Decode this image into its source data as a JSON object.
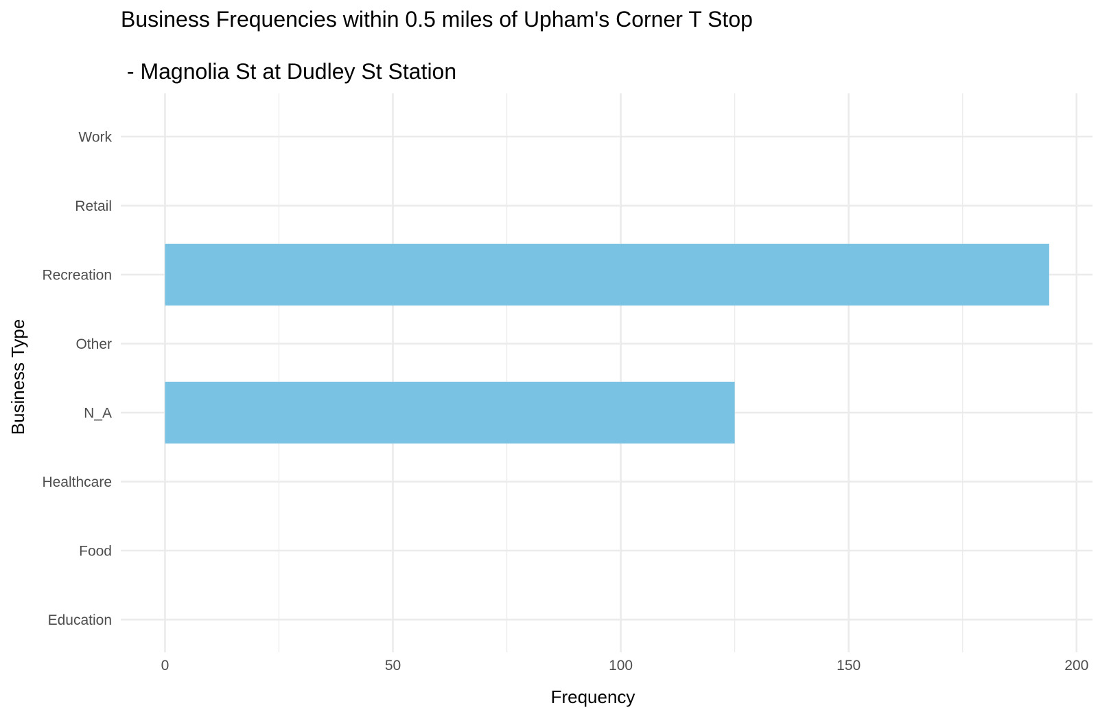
{
  "chart_data": {
    "type": "bar",
    "orientation": "horizontal",
    "title": "Business Frequencies within 0.5 miles of Upham's Corner T Stop",
    "subtitle": " - Magnolia St at Dudley St Station",
    "xlabel": "Frequency",
    "ylabel": "Business Type",
    "categories": [
      "Education",
      "Food",
      "Healthcare",
      "N_A",
      "Other",
      "Recreation",
      "Retail",
      "Work"
    ],
    "values": [
      0,
      0,
      0,
      125,
      0,
      194,
      0,
      0
    ],
    "xlim": [
      -9.7,
      203.5
    ],
    "x_ticks": [
      0,
      50,
      100,
      150,
      200
    ],
    "x_minor_ticks": [
      25,
      75,
      125,
      175
    ],
    "grid": true,
    "legend": "none",
    "bar_color": "#7ac2e4"
  }
}
